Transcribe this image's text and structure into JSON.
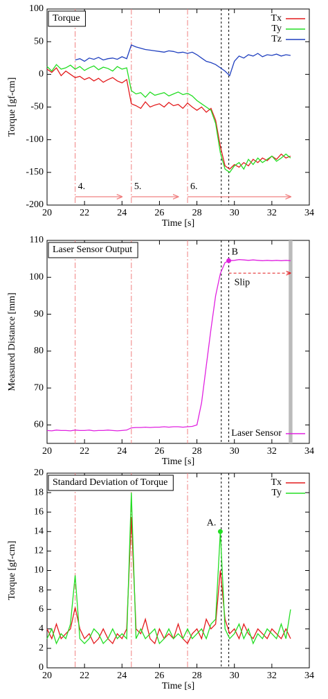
{
  "chart_data": [
    {
      "type": "line",
      "title": "Torque",
      "xlabel": "Time [s]",
      "ylabel": "Torque [gf-cm]",
      "xlim": [
        20,
        34
      ],
      "xticks": [
        20,
        22,
        24,
        26,
        28,
        30,
        32,
        34
      ],
      "ylim": [
        -200,
        100
      ],
      "yticks": [
        -200,
        -150,
        -100,
        -50,
        0,
        50,
        100
      ],
      "legend_position": "top-right",
      "vlines": [
        21.5,
        24.5,
        27.5
      ],
      "black_vlines": [
        29.3,
        29.7
      ],
      "phases": [
        {
          "label": "4.",
          "start": 21.5,
          "end": 24
        },
        {
          "label": "5.",
          "start": 24.5,
          "end": 27
        },
        {
          "label": "6.",
          "start": 27.5,
          "end": 33
        }
      ],
      "x": [
        20,
        20.25,
        20.5,
        20.75,
        21,
        21.25,
        21.5,
        21.75,
        22,
        22.25,
        22.5,
        22.75,
        23,
        23.25,
        23.5,
        23.75,
        24,
        24.25,
        24.5,
        24.75,
        25,
        25.25,
        25.5,
        25.75,
        26,
        26.25,
        26.5,
        26.75,
        27,
        27.25,
        27.5,
        27.75,
        28,
        28.25,
        28.5,
        28.75,
        29,
        29.25,
        29.5,
        29.75,
        30,
        30.25,
        30.5,
        30.75,
        31,
        31.25,
        31.5,
        31.75,
        32,
        32.25,
        32.5,
        32.75,
        33
      ],
      "series": [
        {
          "name": "Tx",
          "color": "#e31a1c",
          "values": [
            8,
            3,
            10,
            -2,
            5,
            0,
            -5,
            -3,
            -8,
            -5,
            -10,
            -6,
            -12,
            -8,
            -5,
            -10,
            -13,
            -8,
            -45,
            -48,
            -52,
            -42,
            -50,
            -47,
            -45,
            -50,
            -43,
            -48,
            -46,
            -52,
            -44,
            -50,
            -55,
            -50,
            -58,
            -52,
            -70,
            -110,
            -140,
            -145,
            -138,
            -142,
            -135,
            -140,
            -130,
            -135,
            -128,
            -132,
            -125,
            -130,
            -122,
            -128,
            -125
          ]
        },
        {
          "name": "Ty",
          "color": "#22dd22",
          "values": [
            12,
            5,
            15,
            8,
            10,
            14,
            8,
            12,
            6,
            10,
            13,
            7,
            11,
            9,
            5,
            12,
            8,
            10,
            -25,
            -30,
            -28,
            -35,
            -27,
            -32,
            -30,
            -28,
            -33,
            -30,
            -27,
            -31,
            -29,
            -33,
            -40,
            -45,
            -50,
            -55,
            -75,
            -120,
            -145,
            -150,
            -140,
            -135,
            -145,
            -130,
            -138,
            -128,
            -135,
            -130,
            -125,
            -133,
            -128,
            -122,
            -128
          ]
        },
        {
          "name": "Tz",
          "color": "#1f3fbf",
          "values": [
            null,
            null,
            null,
            null,
            null,
            null,
            22,
            24,
            20,
            25,
            23,
            26,
            22,
            24,
            25,
            23,
            27,
            24,
            45,
            42,
            40,
            38,
            37,
            36,
            35,
            34,
            36,
            35,
            33,
            34,
            32,
            34,
            30,
            25,
            20,
            18,
            15,
            10,
            5,
            -2,
            20,
            28,
            25,
            30,
            28,
            32,
            27,
            30,
            29,
            31,
            28,
            30,
            29
          ]
        }
      ]
    },
    {
      "type": "line",
      "title": "Laser Sensor Output",
      "xlabel": "Time [s]",
      "ylabel": "Measured Distance [mm]",
      "xlim": [
        20,
        34
      ],
      "xticks": [
        20,
        22,
        24,
        26,
        28,
        30,
        32,
        34
      ],
      "ylim": [
        55,
        110
      ],
      "yticks": [
        60,
        70,
        80,
        90,
        100,
        110
      ],
      "legend_position": "bottom-right",
      "vlines": [
        21.5,
        24.5,
        27.5
      ],
      "black_vlines": [
        29.3,
        29.7
      ],
      "band": [
        32.9,
        33.1
      ],
      "markers": [
        {
          "label": "B",
          "x": 29.7,
          "y": 104.5,
          "color": "#e020e0"
        }
      ],
      "slip": {
        "label": "Slip",
        "start": 29.7,
        "end": 33
      },
      "x": [
        20,
        20.25,
        20.5,
        20.75,
        21,
        21.25,
        21.5,
        21.75,
        22,
        22.25,
        22.5,
        22.75,
        23,
        23.25,
        23.5,
        23.75,
        24,
        24.25,
        24.5,
        24.75,
        25,
        25.25,
        25.5,
        25.75,
        26,
        26.25,
        26.5,
        26.75,
        27,
        27.25,
        27.5,
        27.75,
        28,
        28.25,
        28.5,
        28.75,
        29,
        29.25,
        29.5,
        29.75,
        30,
        30.25,
        30.5,
        30.75,
        31,
        31.25,
        31.5,
        31.75,
        32,
        32.25,
        32.5,
        32.75,
        33
      ],
      "series": [
        {
          "name": "Laser Sensor",
          "color": "#e020e0",
          "values": [
            58.5,
            58.4,
            58.6,
            58.5,
            58.5,
            58.4,
            58.6,
            58.5,
            58.5,
            58.6,
            58.4,
            58.5,
            58.5,
            58.6,
            58.5,
            58.4,
            58.5,
            58.6,
            59.2,
            59.3,
            59.3,
            59.4,
            59.3,
            59.4,
            59.4,
            59.5,
            59.4,
            59.5,
            59.5,
            59.4,
            59.5,
            59.6,
            60,
            66,
            76,
            86,
            95,
            101,
            104,
            104.5,
            104.6,
            104.8,
            104.7,
            104.6,
            104.7,
            104.6,
            104.5,
            104.6,
            104.5,
            104.6,
            104.5,
            104.6,
            104.5
          ]
        }
      ]
    },
    {
      "type": "line",
      "title": "Standard Deviation of Torque",
      "xlabel": "Time [s]",
      "ylabel": "Torque [gf-cm]",
      "xlim": [
        20,
        34
      ],
      "xticks": [
        20,
        22,
        24,
        26,
        28,
        30,
        32,
        34
      ],
      "ylim": [
        0,
        20
      ],
      "yticks": [
        0,
        2,
        4,
        6,
        8,
        10,
        12,
        14,
        16,
        18,
        20
      ],
      "legend_position": "top-right",
      "vlines": [
        21.5,
        24.5,
        27.5
      ],
      "black_vlines": [
        29.3,
        29.7
      ],
      "markers": [
        {
          "label": "A.",
          "x": 29.25,
          "y": 14,
          "color": "#22dd22"
        }
      ],
      "x": [
        20,
        20.25,
        20.5,
        20.75,
        21,
        21.25,
        21.5,
        21.75,
        22,
        22.25,
        22.5,
        22.75,
        23,
        23.25,
        23.5,
        23.75,
        24,
        24.25,
        24.5,
        24.75,
        25,
        25.25,
        25.5,
        25.75,
        26,
        26.25,
        26.5,
        26.75,
        27,
        27.25,
        27.5,
        27.75,
        28,
        28.25,
        28.5,
        28.75,
        29,
        29.25,
        29.5,
        29.75,
        30,
        30.25,
        30.5,
        30.75,
        31,
        31.25,
        31.5,
        31.75,
        32,
        32.25,
        32.5,
        32.75,
        33
      ],
      "series": [
        {
          "name": "Tx",
          "color": "#e31a1c",
          "values": [
            4,
            3,
            4.5,
            3,
            3.5,
            4,
            6.2,
            4,
            3,
            3.5,
            2.5,
            3,
            4,
            3,
            2.5,
            3.5,
            3,
            4,
            15.5,
            4,
            3.5,
            5,
            3,
            2.5,
            4,
            3,
            3.5,
            3,
            4.5,
            3,
            2.5,
            3.5,
            4,
            3,
            5,
            4,
            4.5,
            10,
            5,
            3.5,
            4,
            3,
            4.5,
            3.5,
            3,
            4,
            3.5,
            3,
            4,
            3.5,
            3,
            4,
            3
          ]
        },
        {
          "name": "Ty",
          "color": "#22dd22",
          "values": [
            3,
            4,
            2.5,
            3.5,
            3,
            4.5,
            9.5,
            3,
            2.5,
            3,
            4,
            3.5,
            2.5,
            3,
            4,
            3,
            3.5,
            3,
            18,
            3,
            4,
            3,
            3.5,
            4,
            2.5,
            3,
            4,
            3,
            3.5,
            3,
            4,
            3,
            3.5,
            4,
            3,
            4.5,
            5,
            14,
            4,
            3,
            3.5,
            4.5,
            3,
            4,
            2.5,
            3.5,
            3,
            4,
            3.5,
            3,
            4.5,
            3,
            6
          ]
        }
      ]
    }
  ]
}
